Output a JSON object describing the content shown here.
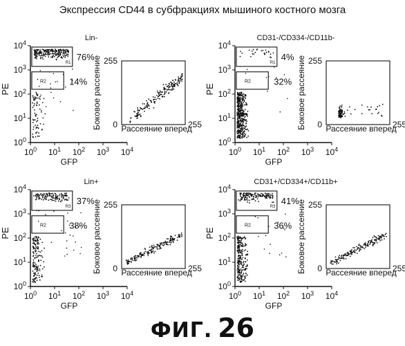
{
  "page": {
    "title": "Экспрессия CD44 в субфракциях мышиного костного мозга",
    "figure_label_prefix": "ФИГ.",
    "figure_label_number": "26"
  },
  "chart_data": [
    {
      "type": "scatter",
      "title": "Lin-",
      "xlabel": "GFP",
      "ylabel": "PE",
      "xscale": "log",
      "yscale": "log",
      "xlim": [
        1,
        10000
      ],
      "ylim": [
        1,
        10000
      ],
      "x_ticks": [
        "10^0",
        "10^1",
        "10^2",
        "10^3",
        "10^4"
      ],
      "y_ticks": [
        "10^0",
        "10^1",
        "10^2",
        "10^3",
        "10^4"
      ],
      "gates": [
        {
          "name": "R1",
          "percent": "76%"
        },
        {
          "name": "R2",
          "percent": "14%"
        }
      ],
      "inset": {
        "type": "scatter",
        "ylabel": "Боковое рассеяние",
        "xlabel": "Рассеяние вперед",
        "xlim": [
          0,
          255
        ],
        "ylim": [
          0,
          255
        ],
        "ticks": [
          "0",
          "255"
        ]
      }
    },
    {
      "type": "scatter",
      "title": "CD31-/CD334-/CD11b-",
      "xlabel": "GFP",
      "ylabel": "PE",
      "xscale": "log",
      "yscale": "log",
      "xlim": [
        1,
        10000
      ],
      "ylim": [
        1,
        10000
      ],
      "x_ticks": [
        "10^0",
        "10^1",
        "10^2",
        "10^3",
        "10^4"
      ],
      "y_ticks": [
        "10^0",
        "10^1",
        "10^2",
        "10^3",
        "10^4"
      ],
      "gates": [
        {
          "name": "R1",
          "percent": "4%"
        },
        {
          "name": "R2",
          "percent": "32%"
        }
      ],
      "inset": {
        "type": "scatter",
        "ylabel": "Боковое рассеяние",
        "xlabel": "Рассеяние вперед",
        "xlim": [
          0,
          255
        ],
        "ylim": [
          0,
          255
        ],
        "ticks": [
          "0",
          "255"
        ]
      }
    },
    {
      "type": "scatter",
      "title": "Lin+",
      "xlabel": "GFP",
      "ylabel": "PE",
      "xscale": "log",
      "yscale": "log",
      "xlim": [
        1,
        10000
      ],
      "ylim": [
        1,
        10000
      ],
      "x_ticks": [
        "10^0",
        "10^1",
        "10^2",
        "10^3",
        "10^4"
      ],
      "y_ticks": [
        "10^0",
        "10^1",
        "10^2",
        "10^3",
        "10^4"
      ],
      "gates": [
        {
          "name": "R3",
          "percent": "37%"
        },
        {
          "name": "R2",
          "percent": "38%"
        }
      ],
      "inset": {
        "type": "scatter",
        "ylabel": "Боковое рассеяние",
        "xlabel": "Рассеяние вперед",
        "xlim": [
          0,
          255
        ],
        "ylim": [
          0,
          255
        ],
        "ticks": [
          "0",
          "255"
        ]
      }
    },
    {
      "type": "scatter",
      "title": "CD31+/CD334+/CD11b+",
      "xlabel": "GFP",
      "ylabel": "PE",
      "xscale": "log",
      "yscale": "log",
      "xlim": [
        1,
        10000
      ],
      "ylim": [
        1,
        10000
      ],
      "x_ticks": [
        "10^0",
        "10^1",
        "10^2",
        "10^3",
        "10^4"
      ],
      "y_ticks": [
        "10^0",
        "10^1",
        "10^2",
        "10^3",
        "10^4"
      ],
      "gates": [
        {
          "name": "R3",
          "percent": "41%"
        },
        {
          "name": "R2",
          "percent": "36%"
        }
      ],
      "inset": {
        "type": "scatter",
        "ylabel": "Боковое рассеяние",
        "xlabel": "Рассеяние вперед",
        "xlim": [
          0,
          255
        ],
        "ylim": [
          0,
          255
        ],
        "ticks": [
          "0",
          "255"
        ]
      }
    }
  ]
}
